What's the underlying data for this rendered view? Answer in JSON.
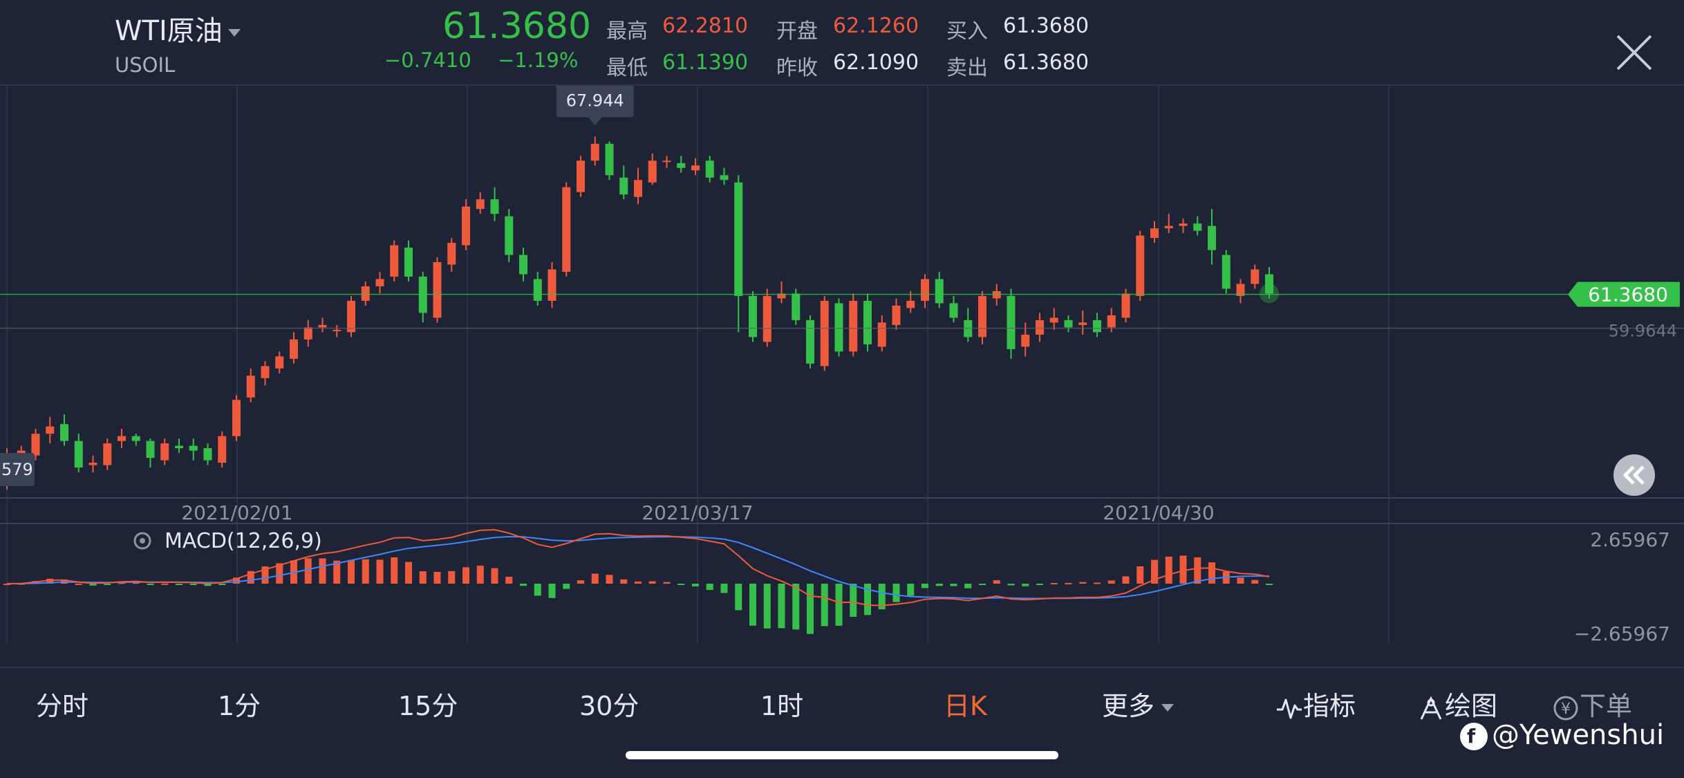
{
  "header": {
    "symbol_name": "WTI原油",
    "symbol_code": "USOIL",
    "last_price": "61.3680",
    "change_abs": "−0.7410",
    "change_pct": "−1.19%",
    "quote": {
      "high_label": "最高",
      "high_value": "62.2810",
      "low_label": "最低",
      "low_value": "61.1390",
      "open_label": "开盘",
      "open_value": "62.1260",
      "prev_close_label": "昨收",
      "prev_close_value": "62.1090",
      "bid_label": "买入",
      "bid_value": "61.3680",
      "ask_label": "卖出",
      "ask_value": "61.3680"
    },
    "close_icon": "close-icon"
  },
  "chart": {
    "high_marker": "67.944",
    "low_marker_partial": "579",
    "current_price_tag": "61.3680",
    "secondary_price": "59.9644",
    "date_labels": [
      "2021/02/01",
      "2021/03/17",
      "2021/04/30"
    ],
    "indicator_label": "MACD(12,26,9)",
    "macd_max": "2.65967",
    "macd_min": "−2.65967",
    "colors": {
      "up": "#ef5a3c",
      "down": "#35c04a",
      "dif": "#ef5a3c",
      "dea": "#3f86ff",
      "bg": "#1e2436"
    }
  },
  "chart_data": {
    "type": "candlestick",
    "series_note": "",
    "price_range": [
      53.0,
      70.0
    ],
    "candles": [
      [
        53.6,
        54.8,
        53.3,
        55.0
      ],
      [
        54.6,
        54.9,
        54.2,
        55.1
      ],
      [
        54.7,
        55.6,
        54.5,
        55.8
      ],
      [
        55.6,
        55.9,
        55.2,
        56.3
      ],
      [
        56.0,
        55.3,
        55.1,
        56.4
      ],
      [
        55.3,
        54.2,
        54.0,
        55.6
      ],
      [
        54.3,
        54.4,
        54.0,
        54.7
      ],
      [
        54.3,
        55.2,
        54.1,
        55.4
      ],
      [
        55.3,
        55.5,
        55.0,
        55.8
      ],
      [
        55.5,
        55.3,
        55.1,
        55.6
      ],
      [
        55.3,
        54.6,
        54.2,
        55.4
      ],
      [
        54.5,
        55.2,
        54.3,
        55.4
      ],
      [
        55.1,
        55.0,
        54.8,
        55.4
      ],
      [
        55.1,
        54.9,
        54.5,
        55.4
      ],
      [
        55.0,
        54.5,
        54.3,
        55.2
      ],
      [
        54.4,
        55.5,
        54.2,
        55.7
      ],
      [
        55.5,
        57.0,
        55.3,
        57.2
      ],
      [
        57.1,
        58.0,
        56.9,
        58.3
      ],
      [
        57.9,
        58.4,
        57.6,
        58.6
      ],
      [
        58.3,
        58.8,
        58.1,
        59.0
      ],
      [
        58.7,
        59.5,
        58.5,
        59.8
      ],
      [
        59.5,
        60.0,
        59.2,
        60.3
      ],
      [
        60.0,
        60.1,
        59.8,
        60.4
      ],
      [
        59.9,
        59.9,
        59.6,
        60.1
      ],
      [
        59.8,
        61.1,
        59.6,
        61.3
      ],
      [
        61.1,
        61.7,
        60.9,
        61.9
      ],
      [
        61.7,
        62.0,
        61.4,
        62.3
      ],
      [
        62.1,
        63.4,
        61.9,
        63.6
      ],
      [
        63.3,
        62.1,
        61.9,
        63.6
      ],
      [
        62.1,
        60.6,
        60.2,
        62.3
      ],
      [
        60.4,
        62.7,
        60.2,
        62.9
      ],
      [
        62.6,
        63.5,
        62.3,
        63.7
      ],
      [
        63.4,
        65.0,
        63.2,
        65.3
      ],
      [
        64.9,
        65.3,
        64.7,
        65.6
      ],
      [
        65.3,
        64.7,
        64.4,
        65.8
      ],
      [
        64.6,
        63.0,
        62.7,
        64.9
      ],
      [
        63.0,
        62.2,
        61.9,
        63.3
      ],
      [
        62.0,
        61.1,
        60.9,
        62.3
      ],
      [
        61.1,
        62.4,
        60.8,
        62.7
      ],
      [
        62.3,
        65.8,
        62.1,
        66.0
      ],
      [
        65.6,
        66.9,
        65.4,
        67.1
      ],
      [
        66.9,
        67.6,
        66.7,
        67.9
      ],
      [
        67.6,
        66.3,
        66.1,
        67.7
      ],
      [
        66.2,
        65.5,
        65.3,
        66.7
      ],
      [
        65.4,
        66.1,
        65.1,
        66.6
      ],
      [
        66.0,
        66.9,
        65.9,
        67.2
      ],
      [
        66.9,
        66.9,
        66.6,
        67.1
      ],
      [
        66.8,
        66.6,
        66.4,
        67.1
      ],
      [
        66.5,
        66.7,
        66.3,
        67.0
      ],
      [
        66.9,
        66.2,
        66.0,
        67.1
      ],
      [
        66.3,
        66.1,
        65.9,
        66.6
      ],
      [
        66.0,
        61.3,
        59.8,
        66.3
      ],
      [
        61.3,
        59.6,
        59.4,
        61.5
      ],
      [
        59.4,
        61.3,
        59.2,
        61.6
      ],
      [
        61.2,
        61.4,
        61.0,
        61.9
      ],
      [
        61.4,
        60.3,
        60.1,
        61.6
      ],
      [
        60.3,
        58.5,
        58.3,
        60.5
      ],
      [
        58.4,
        61.1,
        58.2,
        61.3
      ],
      [
        61.0,
        59.0,
        58.8,
        61.2
      ],
      [
        59.0,
        61.1,
        58.8,
        61.4
      ],
      [
        61.1,
        59.3,
        59.0,
        61.4
      ],
      [
        59.2,
        60.2,
        59.0,
        60.5
      ],
      [
        60.1,
        60.9,
        59.9,
        61.2
      ],
      [
        60.8,
        61.1,
        60.6,
        61.5
      ],
      [
        61.1,
        62.0,
        60.8,
        62.2
      ],
      [
        62.0,
        61.0,
        60.8,
        62.3
      ],
      [
        61.0,
        60.4,
        60.2,
        61.3
      ],
      [
        60.3,
        59.6,
        59.4,
        60.8
      ],
      [
        59.6,
        61.3,
        59.3,
        61.5
      ],
      [
        61.2,
        61.5,
        60.9,
        61.8
      ],
      [
        61.3,
        59.1,
        58.7,
        61.6
      ],
      [
        59.2,
        59.7,
        58.8,
        60.2
      ],
      [
        59.7,
        60.3,
        59.4,
        60.6
      ],
      [
        60.2,
        60.4,
        59.9,
        60.8
      ],
      [
        60.3,
        60.0,
        59.8,
        60.5
      ],
      [
        60.1,
        60.2,
        59.7,
        60.7
      ],
      [
        60.3,
        59.8,
        59.6,
        60.6
      ],
      [
        60.0,
        60.5,
        59.8,
        60.8
      ],
      [
        60.4,
        61.4,
        60.2,
        61.6
      ],
      [
        61.3,
        63.8,
        61.1,
        64.0
      ],
      [
        63.7,
        64.1,
        63.5,
        64.4
      ],
      [
        64.1,
        64.2,
        63.9,
        64.7
      ],
      [
        64.2,
        64.3,
        63.9,
        64.5
      ],
      [
        64.3,
        64.0,
        63.8,
        64.6
      ],
      [
        64.2,
        63.2,
        62.6,
        64.9
      ],
      [
        63.0,
        61.6,
        61.4,
        63.2
      ],
      [
        61.3,
        61.8,
        61.0,
        62.0
      ],
      [
        61.8,
        62.4,
        61.6,
        62.6
      ],
      [
        62.2,
        61.4,
        61.2,
        62.5
      ]
    ]
  },
  "tabs": [
    {
      "label": "分时",
      "active": false
    },
    {
      "label": "1分",
      "active": false
    },
    {
      "label": "15分",
      "active": false
    },
    {
      "label": "30分",
      "active": false
    },
    {
      "label": "1时",
      "active": false
    },
    {
      "label": "日K",
      "active": true
    },
    {
      "label": "更多",
      "active": false
    }
  ],
  "tools": {
    "indicator_label": "指标",
    "drawing_label": "绘图",
    "order_label": "下单"
  },
  "watermark": "@Yewenshui"
}
